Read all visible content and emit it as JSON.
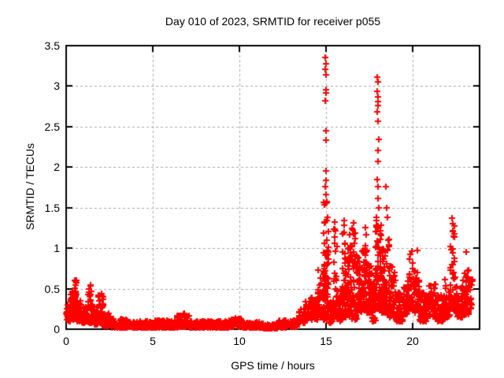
{
  "chart_data": {
    "type": "scatter",
    "title": "Day 010 of 2023, SRMTID for receiver p055",
    "xlabel": "GPS time / hours",
    "ylabel": "SRMTID / TECUs",
    "xlim": [
      0,
      23.86
    ],
    "ylim": [
      0,
      3.5
    ],
    "xticks": [
      0,
      5,
      10,
      15,
      20
    ],
    "yticks": [
      0,
      0.5,
      1,
      1.5,
      2,
      2.5,
      3,
      3.5
    ],
    "grid": true,
    "legend": "none",
    "marker_shape": "plus",
    "marker_color": "#ff0000",
    "grid_color": "#a6a6a6",
    "axis_color": "#000000",
    "background_color": "#ffffff",
    "seed": 20230110,
    "noise_exponent": 1.7,
    "band_segments_columns": [
      "t_start",
      "t_end",
      "y_min",
      "y_max",
      "n_points"
    ],
    "band_segments": [
      [
        0.0,
        0.25,
        0.1,
        0.3,
        30
      ],
      [
        0.25,
        0.45,
        0.12,
        0.48,
        32
      ],
      [
        0.45,
        0.62,
        0.15,
        0.65,
        40
      ],
      [
        0.62,
        0.85,
        0.1,
        0.42,
        35
      ],
      [
        0.85,
        1.25,
        0.08,
        0.28,
        45
      ],
      [
        1.25,
        1.55,
        0.08,
        0.56,
        45
      ],
      [
        1.55,
        1.85,
        0.06,
        0.3,
        35
      ],
      [
        1.85,
        2.15,
        0.05,
        0.44,
        40
      ],
      [
        2.15,
        2.6,
        0.04,
        0.2,
        45
      ],
      [
        2.6,
        3.5,
        0.02,
        0.13,
        80
      ],
      [
        3.5,
        4.6,
        0.02,
        0.1,
        100
      ],
      [
        4.6,
        6.4,
        0.02,
        0.11,
        165
      ],
      [
        6.4,
        7.1,
        0.03,
        0.2,
        65
      ],
      [
        7.1,
        9.4,
        0.02,
        0.1,
        210
      ],
      [
        9.4,
        10.2,
        0.03,
        0.14,
        70
      ],
      [
        10.2,
        11.4,
        0.02,
        0.09,
        105
      ],
      [
        11.4,
        12.2,
        0.01,
        0.06,
        70
      ],
      [
        12.2,
        12.7,
        0.02,
        0.13,
        45
      ],
      [
        12.7,
        13.4,
        0.03,
        0.11,
        60
      ],
      [
        13.4,
        13.8,
        0.08,
        0.26,
        40
      ],
      [
        13.8,
        14.5,
        0.12,
        0.42,
        65
      ],
      [
        14.5,
        14.85,
        0.15,
        0.78,
        42
      ],
      [
        14.85,
        15.15,
        0.12,
        1.6,
        95
      ],
      [
        15.15,
        15.45,
        0.08,
        0.35,
        28
      ],
      [
        15.45,
        15.62,
        0.18,
        1.3,
        26
      ],
      [
        15.62,
        15.95,
        0.1,
        0.52,
        38
      ],
      [
        15.95,
        16.15,
        0.15,
        1.25,
        40
      ],
      [
        16.15,
        16.45,
        0.15,
        1.18,
        48
      ],
      [
        16.45,
        16.75,
        0.12,
        1.28,
        50
      ],
      [
        16.75,
        17.05,
        0.2,
        0.9,
        52
      ],
      [
        17.05,
        17.35,
        0.25,
        1.05,
        55
      ],
      [
        17.35,
        17.65,
        0.2,
        0.82,
        50
      ],
      [
        17.65,
        17.85,
        0.1,
        0.6,
        34
      ],
      [
        17.85,
        18.2,
        0.25,
        1.42,
        88
      ],
      [
        18.2,
        18.45,
        0.2,
        1.0,
        45
      ],
      [
        18.45,
        18.65,
        0.2,
        1.2,
        40
      ],
      [
        18.65,
        19.0,
        0.15,
        0.8,
        48
      ],
      [
        19.0,
        19.45,
        0.1,
        0.45,
        48
      ],
      [
        19.45,
        19.8,
        0.18,
        0.6,
        38
      ],
      [
        19.8,
        20.05,
        0.25,
        1.0,
        36
      ],
      [
        20.05,
        20.4,
        0.2,
        0.72,
        42
      ],
      [
        20.4,
        20.8,
        0.1,
        0.46,
        45
      ],
      [
        20.8,
        21.3,
        0.15,
        0.56,
        52
      ],
      [
        21.3,
        21.8,
        0.1,
        0.42,
        50
      ],
      [
        21.8,
        22.15,
        0.15,
        0.62,
        40
      ],
      [
        22.15,
        22.45,
        0.25,
        1.3,
        45
      ],
      [
        22.45,
        22.9,
        0.15,
        0.56,
        50
      ],
      [
        22.9,
        23.25,
        0.18,
        0.74,
        48
      ],
      [
        23.25,
        23.45,
        0.25,
        0.62,
        22
      ]
    ],
    "peak_points": [
      [
        14.96,
        3.35
      ],
      [
        14.99,
        3.28
      ],
      [
        14.97,
        3.21
      ],
      [
        15.0,
        3.14
      ],
      [
        14.98,
        2.96
      ],
      [
        15.01,
        2.92
      ],
      [
        14.97,
        2.82
      ],
      [
        14.99,
        2.45
      ],
      [
        15.02,
        2.33
      ],
      [
        14.98,
        1.95
      ],
      [
        15.0,
        1.84
      ],
      [
        14.97,
        1.76
      ],
      [
        15.01,
        1.66
      ],
      [
        17.97,
        3.11
      ],
      [
        17.99,
        3.05
      ],
      [
        17.96,
        2.94
      ],
      [
        18.0,
        2.87
      ],
      [
        17.98,
        2.81
      ],
      [
        18.01,
        2.76
      ],
      [
        17.97,
        2.68
      ],
      [
        17.99,
        2.57
      ],
      [
        18.02,
        2.34
      ],
      [
        17.98,
        2.21
      ],
      [
        18.0,
        2.07
      ],
      [
        17.96,
        1.85
      ],
      [
        18.01,
        1.76
      ],
      [
        17.99,
        1.61
      ],
      [
        18.03,
        1.5
      ],
      [
        18.45,
        1.76
      ],
      [
        18.48,
        1.5
      ],
      [
        18.53,
        1.38
      ],
      [
        15.52,
        1.32
      ],
      [
        15.55,
        1.22
      ],
      [
        16.03,
        1.34
      ],
      [
        16.06,
        1.28
      ],
      [
        16.61,
        1.31
      ],
      [
        17.28,
        1.25
      ],
      [
        17.32,
        1.17
      ],
      [
        20.28,
        0.97
      ],
      [
        22.28,
        1.37
      ],
      [
        22.32,
        1.3
      ],
      [
        22.31,
        1.22
      ],
      [
        22.36,
        1.15
      ],
      [
        23.08,
        0.95
      ]
    ]
  }
}
